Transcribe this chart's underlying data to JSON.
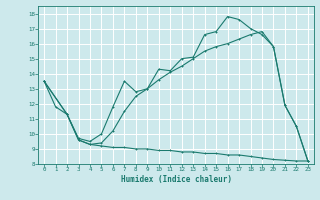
{
  "xlabel": "Humidex (Indice chaleur)",
  "bg_color": "#cde9ec",
  "grid_color": "#ffffff",
  "line_color": "#1a7a6e",
  "xlim": [
    -0.5,
    23.5
  ],
  "ylim": [
    8,
    18.5
  ],
  "yticks": [
    8,
    9,
    10,
    11,
    12,
    13,
    14,
    15,
    16,
    17,
    18
  ],
  "xticks": [
    0,
    1,
    2,
    3,
    4,
    5,
    6,
    7,
    8,
    9,
    10,
    11,
    12,
    13,
    14,
    15,
    16,
    17,
    18,
    19,
    20,
    21,
    22,
    23
  ],
  "curve1_x": [
    0,
    1,
    2,
    3,
    4,
    5,
    6,
    7,
    8,
    9,
    10,
    11,
    12,
    13,
    14,
    15,
    16,
    17,
    18,
    19,
    20,
    21,
    22,
    23
  ],
  "curve1_y": [
    13.5,
    11.8,
    11.3,
    9.7,
    9.5,
    10.0,
    11.8,
    13.5,
    12.8,
    13.0,
    14.3,
    14.2,
    15.0,
    15.1,
    16.6,
    16.8,
    17.8,
    17.6,
    17.0,
    16.6,
    15.8,
    11.9,
    10.5,
    8.2
  ],
  "curve2_x": [
    0,
    2,
    3,
    4,
    5,
    6,
    7,
    8,
    9,
    10,
    11,
    12,
    13,
    14,
    15,
    16,
    17,
    18,
    19,
    20,
    21,
    22,
    23
  ],
  "curve2_y": [
    13.5,
    11.3,
    9.6,
    9.3,
    9.2,
    9.1,
    9.1,
    9.0,
    9.0,
    8.9,
    8.9,
    8.8,
    8.8,
    8.7,
    8.7,
    8.6,
    8.6,
    8.5,
    8.4,
    8.3,
    8.25,
    8.2,
    8.2
  ],
  "curve3_x": [
    0,
    2,
    3,
    4,
    5,
    6,
    7,
    8,
    9,
    10,
    11,
    12,
    13,
    14,
    15,
    16,
    17,
    18,
    19,
    20,
    21,
    22,
    23
  ],
  "curve3_y": [
    13.5,
    11.3,
    9.6,
    9.3,
    9.4,
    10.2,
    11.5,
    12.5,
    13.0,
    13.6,
    14.1,
    14.5,
    15.0,
    15.5,
    15.8,
    16.0,
    16.3,
    16.6,
    16.8,
    15.8,
    11.9,
    10.5,
    8.2
  ]
}
